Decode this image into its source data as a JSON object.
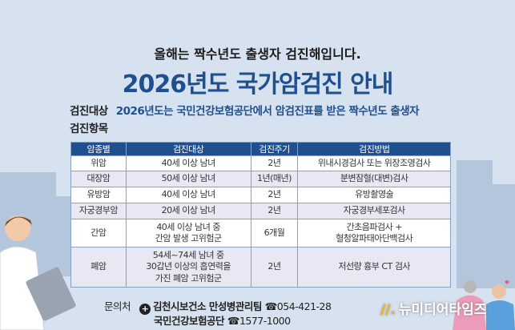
{
  "header": {
    "subtitle": "올해는 짝수년도 출생자 검진해입니다.",
    "title": "2026년도 국가암검진 안내"
  },
  "info": {
    "target_label": "검진대상",
    "target_value": "2026년도는 국민건강보험공단에서 암검진표를 받은 짝수년도 출생자",
    "items_label": "검진항목"
  },
  "table": {
    "headers": [
      "암종별",
      "검진대상",
      "검진주기",
      "검진방법"
    ],
    "rows": [
      [
        "위암",
        "40세 이상 남녀",
        "2년",
        "위내시경검사 또는 위장조영검사"
      ],
      [
        "대장암",
        "50세 이상 남녀",
        "1년(매년)",
        "분변잠혈(대변)검사"
      ],
      [
        "유방암",
        "40세 이상 남녀",
        "2년",
        "유방촬영술"
      ],
      [
        "자궁경부암",
        "20세 이상 남녀",
        "2년",
        "자궁경부세포검사"
      ],
      [
        "간암",
        "40세 이상 남녀 중\n간암 발생 고위험군",
        "6개월",
        "간초음파검사 +\n혈청알파태아단백검사"
      ],
      [
        "폐암",
        "54세~74세 남녀 중\n30갑년 이상의 흡연력을\n가진 폐암 고위험군",
        "2년",
        "저선량 흉부 CT 검사"
      ]
    ]
  },
  "contact": {
    "label": "문의처",
    "org1": "김천시보건소 만성병관리팀",
    "phone1": "☎054-421-28",
    "org2": "국민건강보험공단",
    "phone2": "☎1577-1000"
  },
  "watermark": "뉴미디어타임즈",
  "colors": {
    "accent": "#1f4f8f",
    "background": "#d6e2f0"
  }
}
